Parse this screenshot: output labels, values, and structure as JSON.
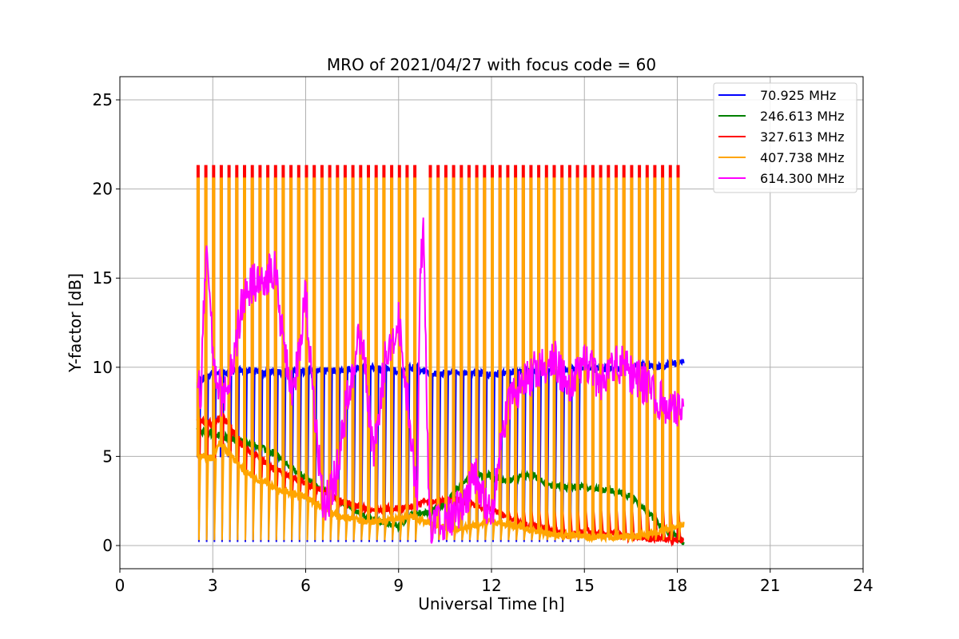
{
  "chart_data": {
    "type": "line",
    "title": "MRO of 2021/04/27 with focus code = 60",
    "xlabel": "Universal Time [h]",
    "ylabel": "Y-factor [dB]",
    "xlim": [
      0,
      24
    ],
    "ylim": [
      -1.3,
      26.3
    ],
    "xticks": [
      0,
      3,
      6,
      9,
      12,
      15,
      18,
      21,
      24
    ],
    "xtick_labels": [
      "0",
      "3",
      "6",
      "9",
      "12",
      "15",
      "18",
      "21",
      "24"
    ],
    "yticks": [
      0,
      5,
      10,
      15,
      20,
      25
    ],
    "ytick_labels": [
      "0",
      "5",
      "10",
      "15",
      "20",
      "25"
    ],
    "grid": true,
    "legend_position": "top-right",
    "time_range": [
      2.5,
      18.2
    ],
    "spike_period_h": 0.25,
    "series": [
      {
        "name": "70.925 MHz",
        "legend_label": " 70.925 MHz",
        "color": "#0000ff",
        "baseline": {
          "x": [
            2.5,
            3.0,
            4.0,
            5.0,
            6.0,
            7.0,
            8.0,
            9.0,
            9.5,
            10.0,
            11.0,
            12.0,
            13.0,
            14.0,
            15.0,
            16.0,
            17.0,
            17.5,
            18.2
          ],
          "y": [
            9.2,
            9.7,
            9.8,
            9.7,
            9.8,
            9.8,
            10.0,
            9.8,
            10.0,
            9.6,
            9.7,
            9.6,
            9.8,
            9.8,
            9.9,
            9.9,
            10.1,
            10.0,
            10.4
          ]
        },
        "spikes": {
          "x_range": [
            2.5,
            14.8
          ],
          "top": 5.0,
          "bottom": 0.2
        }
      },
      {
        "name": "246.613 MHz",
        "legend_label": "246.613 MHz",
        "color": "#008000",
        "baseline": {
          "x": [
            2.5,
            3.0,
            4.0,
            5.0,
            5.5,
            6.0,
            7.0,
            8.0,
            9.0,
            9.5,
            10.0,
            10.5,
            11.0,
            11.5,
            12.0,
            12.5,
            13.0,
            13.3,
            14.0,
            15.0,
            15.5,
            16.0,
            16.5,
            17.0,
            17.5,
            18.2
          ],
          "y": [
            6.5,
            6.3,
            5.8,
            5.2,
            4.4,
            3.8,
            2.6,
            1.5,
            1.1,
            1.8,
            1.9,
            2.3,
            3.4,
            4.0,
            3.9,
            3.6,
            3.9,
            4.0,
            3.3,
            3.3,
            3.2,
            3.0,
            2.8,
            2.0,
            1.0,
            0.2
          ]
        },
        "spikes": null
      },
      {
        "name": "327.613 MHz",
        "legend_label": "327.613 MHz",
        "color": "#ff0000",
        "baseline": {
          "x": [
            2.5,
            3.0,
            3.3,
            4.0,
            5.0,
            6.0,
            6.5,
            7.0,
            8.0,
            9.0,
            9.5,
            10.0,
            11.0,
            12.0,
            13.0,
            14.0,
            14.5,
            15.0,
            16.0,
            17.0,
            18.2
          ],
          "y": [
            7.0,
            6.8,
            7.3,
            5.5,
            4.3,
            3.5,
            3.1,
            2.6,
            2.0,
            2.1,
            2.2,
            2.5,
            2.5,
            2.0,
            1.2,
            0.8,
            0.6,
            0.8,
            0.6,
            0.4,
            0.3
          ]
        },
        "spikes": {
          "x_range": [
            2.5,
            18.1
          ],
          "top": 21.3,
          "bottom": 2.0
        }
      },
      {
        "name": "407.738 MHz",
        "legend_label": "407.738 MHz",
        "color": "#ffa500",
        "baseline": {
          "x": [
            2.5,
            3.0,
            3.2,
            4.0,
            5.0,
            6.0,
            7.0,
            8.0,
            9.0,
            9.5,
            10.0,
            11.0,
            12.0,
            13.0,
            14.0,
            15.0,
            16.0,
            17.0,
            18.2
          ],
          "y": [
            5.0,
            4.9,
            5.8,
            4.2,
            3.2,
            2.7,
            1.7,
            1.3,
            1.5,
            1.6,
            1.2,
            0.9,
            1.4,
            1.0,
            0.6,
            0.5,
            0.5,
            0.6,
            1.2
          ]
        },
        "spikes": {
          "x_range": [
            2.5,
            18.1
          ],
          "top": 20.6,
          "bottom": 0.3
        }
      },
      {
        "name": "614.300 MHz",
        "legend_label": "614.300 MHz",
        "color": "#ff00ff",
        "baseline": {
          "x": [
            2.45,
            2.6,
            2.8,
            3.0,
            3.3,
            3.7,
            4.0,
            4.5,
            5.0,
            5.3,
            5.6,
            6.0,
            6.3,
            6.6,
            7.0,
            7.4,
            7.8,
            8.2,
            8.6,
            9.0,
            9.3,
            9.6,
            9.7,
            9.8,
            10.0,
            10.5,
            11.0,
            11.5,
            12.0,
            12.5,
            13.0,
            13.5,
            14.0,
            14.5,
            15.0,
            15.5,
            16.0,
            16.5,
            17.0,
            17.5,
            18.0,
            18.2
          ],
          "y": [
            10.8,
            8.0,
            17.5,
            11.0,
            8.0,
            11.0,
            14.0,
            15.0,
            15.5,
            11.0,
            8.5,
            14.0,
            7.0,
            2.0,
            4.0,
            9.0,
            12.0,
            5.0,
            11.0,
            12.5,
            8.0,
            2.5,
            15.5,
            17.5,
            1.0,
            1.5,
            2.0,
            4.0,
            1.5,
            8.0,
            9.0,
            10.0,
            10.5,
            9.0,
            10.5,
            9.0,
            10.5,
            9.5,
            9.0,
            8.0,
            7.5,
            7.2
          ]
        },
        "spikes": null
      }
    ]
  }
}
